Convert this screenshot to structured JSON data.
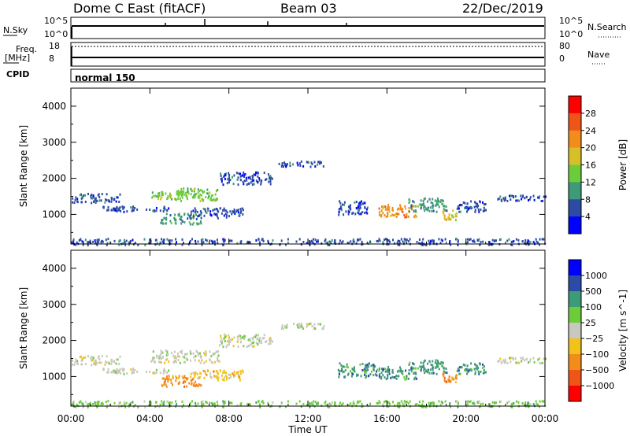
{
  "header": {
    "station": "Dome C East (fitACF)",
    "beam": "Beam 03",
    "date": "22/Dec/2019"
  },
  "status_panels": {
    "nsky_label": "N.Sky",
    "nsky_ticks": [
      "10^5",
      "10^0"
    ],
    "nsearch_label": "N.Search",
    "nsearch_ticks": [
      "10^5",
      "10^0"
    ],
    "freq_label": "Freq.",
    "freq_unit": "[MHz]",
    "freq_ticks": [
      "18",
      "8"
    ],
    "nave_label": "Nave",
    "nave_ticks": [
      "80",
      "0"
    ],
    "cpid_label": "CPID",
    "cpid_value": "normal 150"
  },
  "chart_data": [
    {
      "type": "heatmap",
      "name": "power",
      "xlabel": "Time UT",
      "ylabel": "Slant Range [km]",
      "xlim": [
        0,
        24
      ],
      "ylim": [
        180,
        4500
      ],
      "x_ticks": [
        "00:00",
        "04:00",
        "08:00",
        "12:00",
        "16:00",
        "20:00",
        "00:00"
      ],
      "y_ticks": [
        "1000",
        "2000",
        "3000",
        "4000"
      ],
      "colorbar_label": "Power [dB]",
      "colorbar_ticks": [
        "4",
        "8",
        "12",
        "16",
        "20",
        "24",
        "28"
      ],
      "colorbar_colors": [
        "#0000ff",
        "#2b4ba4",
        "#3e9b77",
        "#6ccc3a",
        "#d7bf2a",
        "#f28c1a",
        "#ef5519",
        "#ff0000"
      ],
      "regions": [
        {
          "t": [
            0.0,
            2.5
          ],
          "r": [
            1350,
            1600
          ],
          "level": 1
        },
        {
          "t": [
            1.6,
            5.0
          ],
          "r": [
            1100,
            1250
          ],
          "level": 1
        },
        {
          "t": [
            4.0,
            6.5
          ],
          "r": [
            1450,
            1650
          ],
          "level": 3
        },
        {
          "t": [
            4.5,
            6.6
          ],
          "r": [
            750,
            1050
          ],
          "level": 2
        },
        {
          "t": [
            5.2,
            7.5
          ],
          "r": [
            1400,
            1750
          ],
          "level": 3
        },
        {
          "t": [
            6.0,
            8.7
          ],
          "r": [
            900,
            1200
          ],
          "level": 1
        },
        {
          "t": [
            7.5,
            10.2
          ],
          "r": [
            1850,
            2200
          ],
          "level": 1
        },
        {
          "t": [
            10.5,
            12.8
          ],
          "r": [
            2350,
            2500
          ],
          "level": 1
        },
        {
          "t": [
            13.5,
            15.0
          ],
          "r": [
            1000,
            1400
          ],
          "level": 1
        },
        {
          "t": [
            15.5,
            17.5
          ],
          "r": [
            950,
            1300
          ],
          "level": 5
        },
        {
          "t": [
            17.0,
            19.0
          ],
          "r": [
            1100,
            1500
          ],
          "level": 2
        },
        {
          "t": [
            18.8,
            19.5
          ],
          "r": [
            850,
            1150
          ],
          "level": 4
        },
        {
          "t": [
            19.5,
            21.0
          ],
          "r": [
            1100,
            1400
          ],
          "level": 1
        },
        {
          "t": [
            21.5,
            24.0
          ],
          "r": [
            1400,
            1550
          ],
          "level": 1
        },
        {
          "t": [
            0.0,
            24.0
          ],
          "r": [
            180,
            350
          ],
          "level": 1
        }
      ]
    },
    {
      "type": "heatmap",
      "name": "velocity",
      "xlabel": "Time UT",
      "ylabel": "Slant Range [km]",
      "xlim": [
        0,
        24
      ],
      "ylim": [
        180,
        4500
      ],
      "x_ticks": [
        "00:00",
        "04:00",
        "08:00",
        "12:00",
        "16:00",
        "20:00",
        "00:00"
      ],
      "y_ticks": [
        "1000",
        "2000",
        "3000",
        "4000"
      ],
      "colorbar_label": "Velocity [m s^-1]",
      "colorbar_ticks": [
        "1000",
        "500",
        "100",
        "25",
        "−25",
        "−100",
        "−500",
        "−1000"
      ],
      "colorbar_colors": [
        "#0000ff",
        "#2b4ba4",
        "#3e9b77",
        "#6ccc3a",
        "#c8c8c0",
        "#f2c21a",
        "#f28c1a",
        "#ef5519",
        "#ff0000"
      ],
      "regions": [
        {
          "t": [
            0.0,
            2.5
          ],
          "r": [
            1350,
            1600
          ],
          "level": 4
        },
        {
          "t": [
            1.6,
            5.0
          ],
          "r": [
            1100,
            1250
          ],
          "level": 4
        },
        {
          "t": [
            4.0,
            7.5
          ],
          "r": [
            1400,
            1750
          ],
          "level": 4
        },
        {
          "t": [
            4.5,
            6.6
          ],
          "r": [
            750,
            1050
          ],
          "level": 6
        },
        {
          "t": [
            6.0,
            8.7
          ],
          "r": [
            900,
            1200
          ],
          "level": 5
        },
        {
          "t": [
            7.5,
            10.2
          ],
          "r": [
            1850,
            2200
          ],
          "level": 4
        },
        {
          "t": [
            10.5,
            12.8
          ],
          "r": [
            2350,
            2500
          ],
          "level": 4
        },
        {
          "t": [
            13.5,
            15.5
          ],
          "r": [
            1000,
            1400
          ],
          "level": 2
        },
        {
          "t": [
            15.5,
            17.5
          ],
          "r": [
            950,
            1300
          ],
          "level": 2
        },
        {
          "t": [
            17.0,
            19.0
          ],
          "r": [
            1100,
            1500
          ],
          "level": 2
        },
        {
          "t": [
            18.8,
            19.5
          ],
          "r": [
            850,
            1150
          ],
          "level": 6
        },
        {
          "t": [
            19.5,
            21.0
          ],
          "r": [
            1100,
            1400
          ],
          "level": 2
        },
        {
          "t": [
            21.5,
            24.0
          ],
          "r": [
            1400,
            1550
          ],
          "level": 4
        },
        {
          "t": [
            0.0,
            24.0
          ],
          "r": [
            180,
            350
          ],
          "level": 3
        }
      ]
    }
  ]
}
